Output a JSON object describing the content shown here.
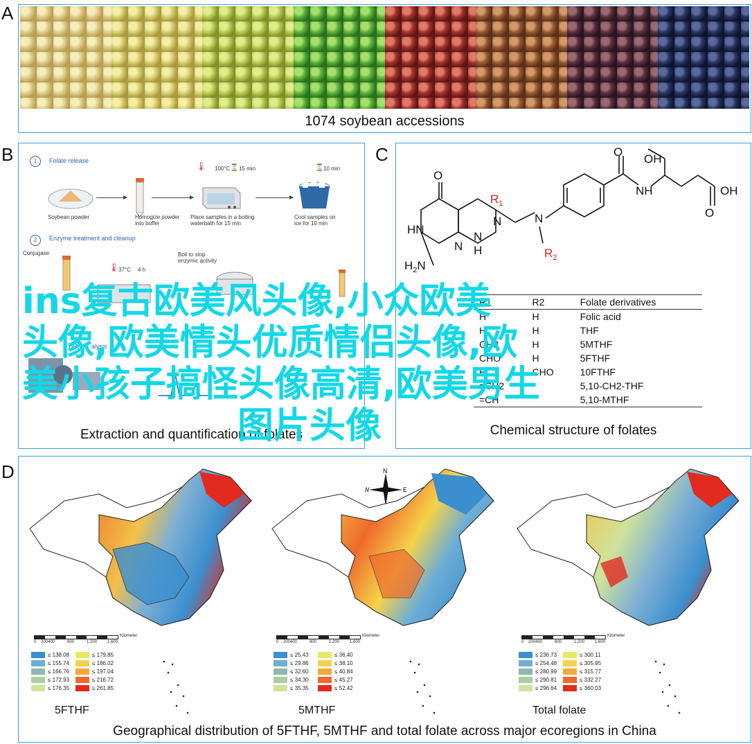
{
  "panels": {
    "A": {
      "letter": "A",
      "caption": "1074 soybean accessions"
    },
    "B": {
      "letter": "B",
      "caption": "Extraction and quantification of folates",
      "step1_num": "1",
      "step1_title": "Folate release",
      "step1_labels": [
        "Soybean powder",
        "Homogize powder into buffer",
        "Place samples in a boiling waterbath for 15 min",
        "Cool samples on ice for 10 min"
      ],
      "step1_marks": [
        "100°C",
        "15 min",
        "10 min"
      ],
      "step2_num": "2",
      "step2_title": "Enzyme treatment and cleanup",
      "step2_labels": [
        "Conjugase",
        "Boil to stop enzymic activity"
      ],
      "step2_marks": [
        "37°C",
        "4 h"
      ],
      "step3_title": "HP… …alysis"
    },
    "C": {
      "letter": "C",
      "caption": "Chemical structure of folates",
      "table_headers": [
        "R1",
        "R2",
        "Folate derivatives"
      ],
      "table_rows": [
        [
          "H",
          "H",
          "Folic acid"
        ],
        [
          "H",
          "H",
          "THF"
        ],
        [
          "CH3",
          "H",
          "5MTHF"
        ],
        [
          "CHO",
          "H",
          "5FTHF"
        ],
        [
          "H",
          "CHO",
          "10FTHF"
        ],
        [
          "=CH2",
          "",
          "5,10-CH2-THF"
        ],
        [
          "=CH",
          "",
          "5,10-MTHF"
        ]
      ]
    },
    "D": {
      "letter": "D",
      "caption": "Geographical distribution of 5FTHF, 5MTHF and total folate across major ecoregions in China",
      "compass": {
        "n": "N",
        "s": "S",
        "e": "E",
        "w": "W"
      },
      "scale_labels": [
        "0",
        "200400",
        "800",
        "1,200",
        "1,600"
      ],
      "scale_unit": "Kilometer",
      "maps": [
        {
          "title": "5FTHF",
          "legend": [
            "≤ 138.08",
            "≤ 179.85",
            "≤ 155.74",
            "≤ 186.02",
            "≤ 166.76",
            "≤ 197.04",
            "≤ 172.93",
            "≤ 216.72",
            "≤ 176.35",
            "≤ 261.85"
          ]
        },
        {
          "title": "5MTHF",
          "legend": [
            "≤ 25.43",
            "≤ 36.40",
            "≤ 29.86",
            "≤ 38.10",
            "≤ 32.60",
            "≤ 40.84",
            "≤ 34.30",
            "≤ 45.27",
            "≤ 35.35",
            "≤ 52.42"
          ]
        },
        {
          "title": "Total folate",
          "legend": [
            "≤ 236.73",
            "≤ 300.11",
            "≤ 254.48",
            "≤ 305.95",
            "≤ 280.99",
            "≤ 315.77",
            "≤ 290.81",
            "≤ 332.27",
            "≤ 296.64",
            "≤ 360.03"
          ]
        }
      ],
      "legend_colors": [
        "#3b8fce",
        "#e8e866",
        "#6faed4",
        "#f5d24a",
        "#8fb8b0",
        "#f5a83a",
        "#a8cfa0",
        "#ef6a2a",
        "#cfe39a",
        "#e32a1f"
      ]
    }
  },
  "chem": {
    "o": "O",
    "oh": "OH",
    "nh": "NH",
    "hn": "HN",
    "n": "N",
    "h": "H",
    "r1": "R",
    "r2": "R",
    "one": "1",
    "two": "2",
    "h2n": "H",
    "h2n_sub": "2",
    "h2n_n": "N"
  },
  "overlay": {
    "line1": "ins复古欧美风头像,小众欧美",
    "line2": "头像,欧美情头优质情侣头像,欧",
    "line3": "美小孩子搞怪头像高清,欧美男生",
    "line4": "图片头像"
  }
}
